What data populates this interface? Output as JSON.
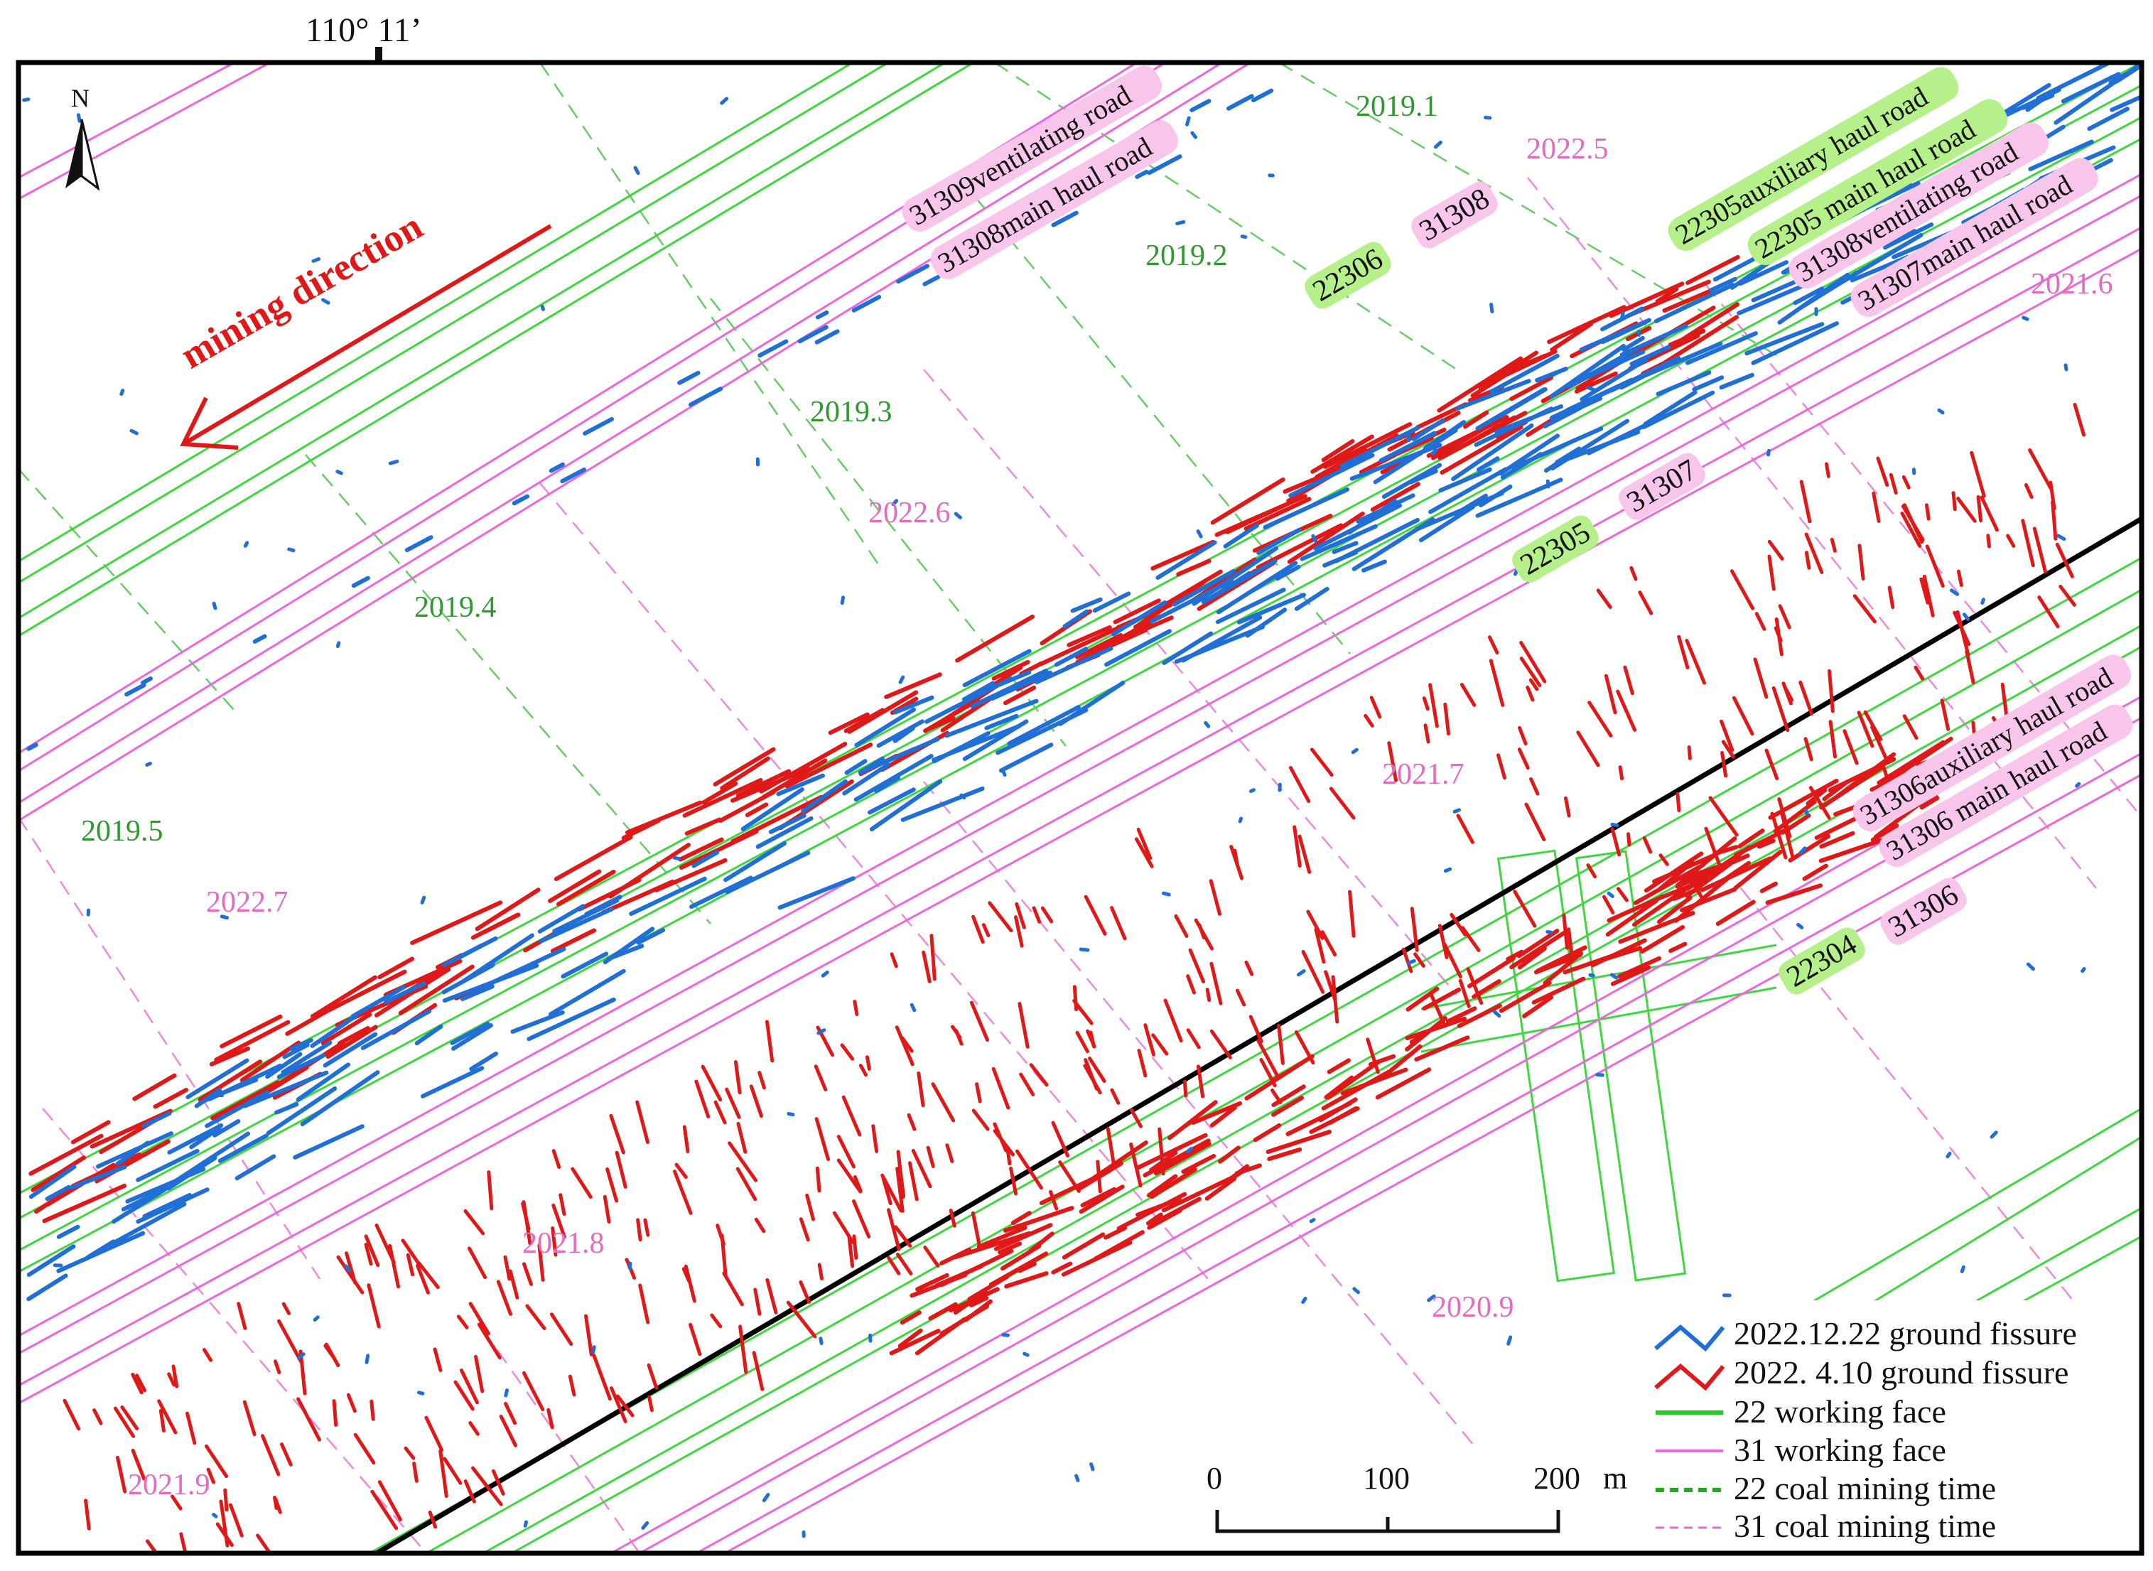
{
  "coord_label": "110°  11’",
  "north_label": "N",
  "mining_direction_label": "mining direction",
  "roads": {
    "r31309_vent": "31309ventilating road",
    "r31308_main": "31308main haul road",
    "r22305_aux": "22305auxiliary haul road",
    "r22305_main": "22305 main haul road",
    "r31308_vent": "31308ventilating road",
    "r31307_main": "31307main haul road",
    "r31306_aux": "31306auxiliary haul road",
    "r31306_main": "31306 main haul road"
  },
  "faces": {
    "f22306": "22306",
    "f31308": "31308",
    "f22305": "22305",
    "f31307": "31307",
    "f22304": "22304",
    "f31306": "31306"
  },
  "times_22": [
    "2019.1",
    "2019.2",
    "2019.3",
    "2019.4",
    "2019.5"
  ],
  "times_31": [
    "2022.5",
    "2022.6",
    "2022.7",
    "2021.6",
    "2021.7",
    "2021.8",
    "2021.9",
    "2020.9"
  ],
  "legend": [
    {
      "label": "2022.12.22 ground fissure",
      "color": "#1f6fd6"
    },
    {
      "label": "2022. 4.10  ground fissure",
      "color": "#e01818"
    },
    {
      "label": "22 working face",
      "color": "#22cc22"
    },
    {
      "label": "31 working face",
      "color": "#ee66dd"
    },
    {
      "label": "22 coal mining time",
      "color": "#22aa22"
    },
    {
      "label": "31 coal mining time",
      "color": "#ee66dd"
    }
  ],
  "scale": {
    "ticks": [
      "0",
      "100",
      "200"
    ],
    "unit": "m"
  },
  "colors": {
    "fissure_2022_12": "#1f6fd6",
    "fissure_2022_04": "#e01818",
    "face22": "#3dd83d",
    "face31": "#ee66dd",
    "road_label_bg_22": "#b6f08a",
    "road_label_bg_31": "#f7c6ea"
  }
}
